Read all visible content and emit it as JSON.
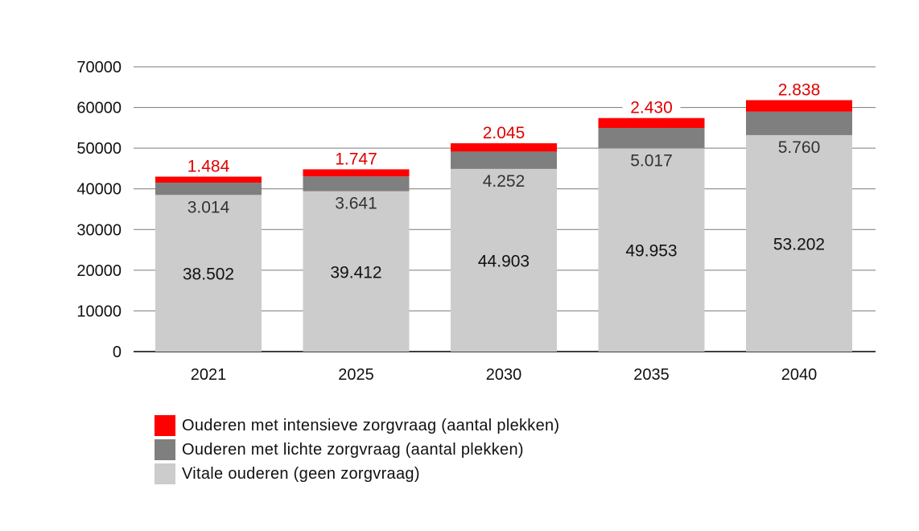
{
  "chart_data": {
    "type": "bar",
    "stacked": true,
    "categories": [
      "2021",
      "2025",
      "2030",
      "2035",
      "2040"
    ],
    "series": [
      {
        "name": "Vitale ouderen (geen zorgvraag)",
        "color": "#cccccc",
        "label_color": "#111111",
        "values": [
          38502,
          39412,
          44903,
          49953,
          53202
        ],
        "labels": [
          "38.502",
          "39.412",
          "44.903",
          "49.953",
          "53.202"
        ]
      },
      {
        "name": "Ouderen met lichte zorgvraag (aantal plekken)",
        "color": "#7f7f7f",
        "label_color": "#333333",
        "values": [
          3014,
          3641,
          4252,
          5017,
          5760
        ],
        "labels": [
          "3.014",
          "3.641",
          "4.252",
          "5.017",
          "5.760"
        ]
      },
      {
        "name": "Ouderen met intensieve zorgvraag (aantal plekken)",
        "color": "#ff0000",
        "label_color": "#e00000",
        "values": [
          1484,
          1747,
          2045,
          2430,
          2838
        ],
        "labels": [
          "1.484",
          "1.747",
          "2.045",
          "2.430",
          "2.838"
        ]
      }
    ],
    "yticks": [
      "0",
      "10000",
      "20000",
      "30000",
      "40000",
      "50000",
      "60000",
      "70000"
    ],
    "ylim": [
      0,
      70000
    ],
    "grid": true,
    "legend_position": "bottom-left",
    "legend_order": [
      2,
      1,
      0
    ]
  }
}
